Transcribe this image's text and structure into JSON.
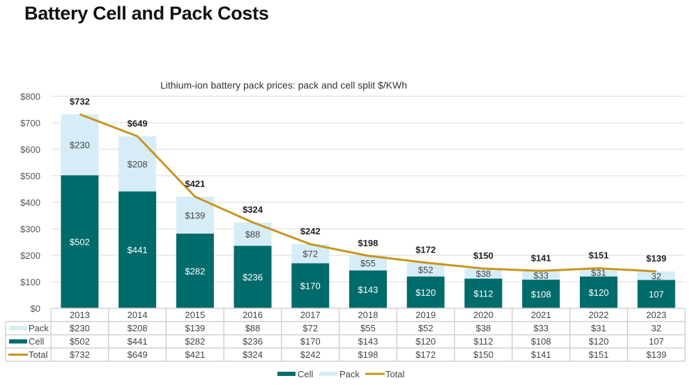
{
  "page": {
    "title": "Battery Cell and Pack Costs"
  },
  "colors": {
    "cell": "#006b6b",
    "pack": "#d6edf7",
    "total": "#c8941c"
  },
  "chart_data": {
    "type": "bar",
    "stacked": true,
    "title": "Lithium-ion battery pack prices: pack and cell split $/KWh",
    "xlabel": "",
    "ylabel": "",
    "ylim": [
      0,
      800
    ],
    "yticks": [
      0,
      100,
      200,
      300,
      400,
      500,
      600,
      700,
      800
    ],
    "ytick_labels": [
      "$0",
      "$100",
      "$200",
      "$300",
      "$400",
      "$500",
      "$600",
      "$700",
      "$800"
    ],
    "grid": true,
    "categories": [
      "2013",
      "2014",
      "2015",
      "2016",
      "2017",
      "2018",
      "2019",
      "2020",
      "2021",
      "2022",
      "2023"
    ],
    "series": [
      {
        "name": "Cell",
        "kind": "bar",
        "values": [
          502,
          441,
          282,
          236,
          170,
          143,
          120,
          112,
          108,
          120,
          107
        ],
        "labels": [
          "$502",
          "$441",
          "$282",
          "$236",
          "$170",
          "$143",
          "$120",
          "$112",
          "$108",
          "$120",
          "107"
        ]
      },
      {
        "name": "Pack",
        "kind": "bar",
        "values": [
          230,
          208,
          139,
          88,
          72,
          55,
          52,
          38,
          33,
          31,
          32
        ],
        "labels": [
          "$230",
          "$208",
          "$139",
          "$88",
          "$72",
          "$55",
          "$52",
          "$38",
          "$33",
          "$31",
          "32"
        ]
      },
      {
        "name": "Total",
        "kind": "line",
        "values": [
          732,
          649,
          421,
          324,
          242,
          198,
          172,
          150,
          141,
          151,
          139
        ],
        "labels": [
          "$732",
          "$649",
          "$421",
          "$324",
          "$242",
          "$198",
          "$172",
          "$150",
          "$141",
          "$151",
          "$139"
        ]
      }
    ],
    "data_table": {
      "rows": [
        {
          "name": "Pack",
          "cells": [
            "$230",
            "$208",
            "$139",
            "$88",
            "$72",
            "$55",
            "$52",
            "$38",
            "$33",
            "$31",
            "32"
          ]
        },
        {
          "name": "Cell",
          "cells": [
            "$502",
            "$441",
            "$282",
            "$236",
            "$170",
            "$143",
            "$120",
            "$112",
            "$108",
            "$120",
            "107"
          ]
        },
        {
          "name": "Total",
          "cells": [
            "$732",
            "$649",
            "$421",
            "$324",
            "$242",
            "$198",
            "$172",
            "$150",
            "$141",
            "$151",
            "$139"
          ]
        }
      ]
    },
    "legend": {
      "position": "bottom",
      "entries": [
        "Cell",
        "Pack",
        "Total"
      ]
    }
  }
}
